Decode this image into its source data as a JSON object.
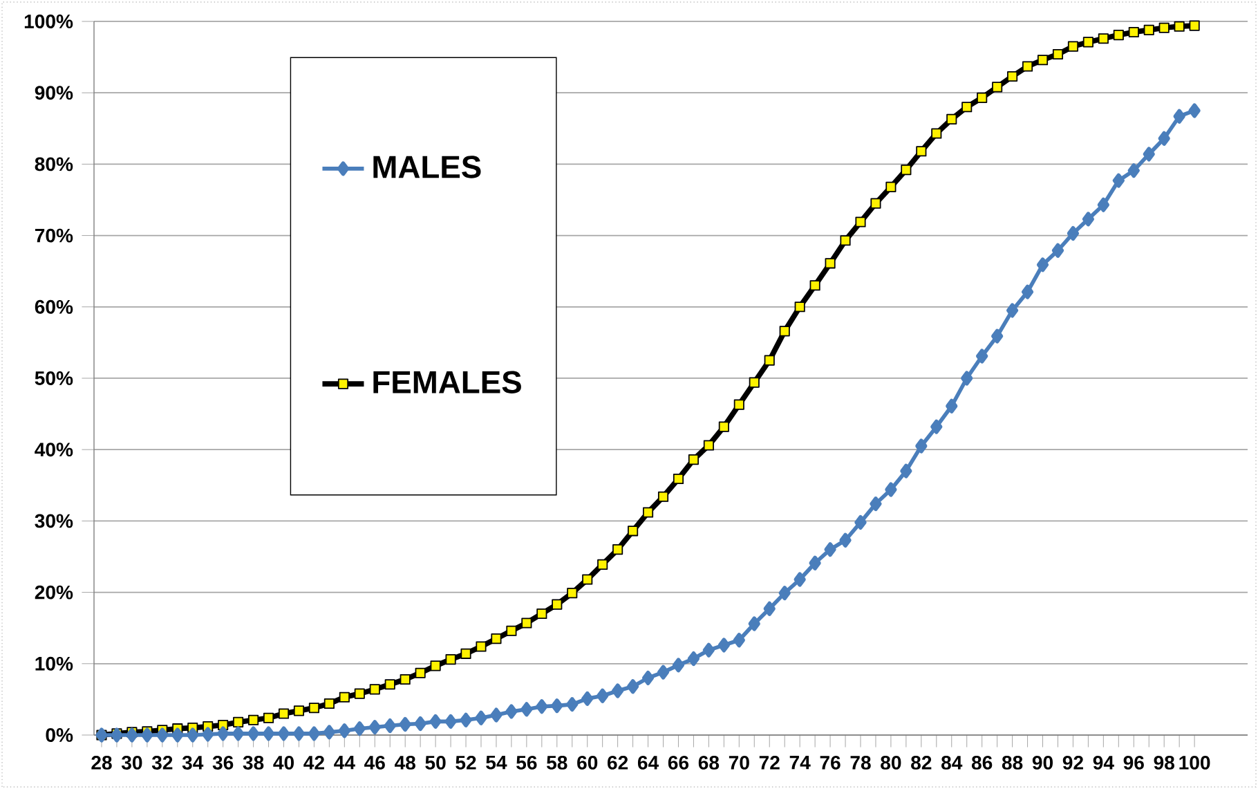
{
  "chart_data": {
    "type": "line",
    "x": [
      28,
      29,
      30,
      31,
      32,
      33,
      34,
      35,
      36,
      37,
      38,
      39,
      40,
      41,
      42,
      43,
      44,
      45,
      46,
      47,
      48,
      49,
      50,
      51,
      52,
      53,
      54,
      55,
      56,
      57,
      58,
      59,
      60,
      61,
      62,
      63,
      64,
      65,
      66,
      67,
      68,
      69,
      70,
      71,
      72,
      73,
      74,
      75,
      76,
      77,
      78,
      79,
      80,
      81,
      82,
      83,
      84,
      85,
      86,
      87,
      88,
      89,
      90,
      91,
      92,
      93,
      94,
      95,
      96,
      97,
      98,
      99,
      100
    ],
    "series": [
      {
        "name": "MALES",
        "color": "#4a7ebb",
        "marker": "diamond",
        "values": [
          0,
          0,
          0,
          0,
          0,
          0,
          0,
          0.1,
          0.2,
          0.2,
          0.2,
          0.2,
          0.2,
          0.2,
          0.2,
          0.4,
          0.6,
          0.9,
          1.1,
          1.3,
          1.5,
          1.6,
          1.9,
          1.9,
          2.1,
          2.4,
          2.8,
          3.3,
          3.6,
          4.0,
          4.1,
          4.3,
          5.1,
          5.5,
          6.2,
          6.8,
          8.0,
          8.8,
          9.8,
          10.7,
          11.9,
          12.6,
          13.3,
          15.6,
          17.7,
          19.9,
          21.8,
          24.1,
          26.0,
          27.3,
          29.8,
          32.4,
          34.4,
          37.0,
          40.5,
          43.2,
          46.1,
          50.0,
          53.1,
          55.9,
          59.5,
          62.1,
          65.9,
          67.9,
          70.3,
          72.3,
          74.3,
          77.7,
          79.1,
          81.4,
          83.6,
          86.7,
          87.5
        ]
      },
      {
        "name": "FEMALES",
        "color": "#000000",
        "marker": "square",
        "values": [
          0,
          0.2,
          0.4,
          0.5,
          0.7,
          0.9,
          1.0,
          1.2,
          1.4,
          1.8,
          2.1,
          2.4,
          3.0,
          3.4,
          3.8,
          4.4,
          5.3,
          5.8,
          6.4,
          7.1,
          7.8,
          8.7,
          9.7,
          10.6,
          11.4,
          12.4,
          13.5,
          14.6,
          15.7,
          17.0,
          18.3,
          19.9,
          21.8,
          23.9,
          26.0,
          28.6,
          31.2,
          33.4,
          35.9,
          38.6,
          40.6,
          43.2,
          46.3,
          49.4,
          52.5,
          56.6,
          60.0,
          63.0,
          66.1,
          69.3,
          71.9,
          74.5,
          76.8,
          79.2,
          81.8,
          84.3,
          86.3,
          88.0,
          89.3,
          90.8,
          92.3,
          93.7,
          94.6,
          95.4,
          96.5,
          97.1,
          97.6,
          98.1,
          98.5,
          98.8,
          99.1,
          99.3,
          99.4
        ]
      }
    ],
    "xlim": [
      27.5,
      103.5
    ],
    "xticks": [
      28,
      30,
      32,
      34,
      36,
      38,
      40,
      42,
      44,
      46,
      48,
      50,
      52,
      54,
      56,
      58,
      60,
      62,
      64,
      66,
      68,
      70,
      72,
      74,
      76,
      78,
      80,
      82,
      84,
      86,
      88,
      90,
      92,
      94,
      96,
      98,
      100
    ],
    "ylim": [
      0,
      100
    ],
    "yticks": [
      {
        "value": 0,
        "label": "0%"
      },
      {
        "value": 10,
        "label": "10%"
      },
      {
        "value": 20,
        "label": "20%"
      },
      {
        "value": 30,
        "label": "30%"
      },
      {
        "value": 40,
        "label": "40%"
      },
      {
        "value": 50,
        "label": "50%"
      },
      {
        "value": 60,
        "label": "60%"
      },
      {
        "value": 70,
        "label": "70%"
      },
      {
        "value": 80,
        "label": "80%"
      },
      {
        "value": 90,
        "label": "90%"
      },
      {
        "value": 100,
        "label": "100%"
      }
    ],
    "grid": "y",
    "legend": "top left"
  }
}
